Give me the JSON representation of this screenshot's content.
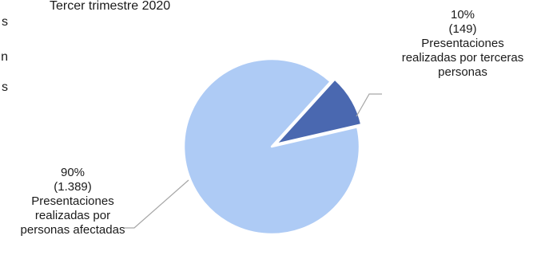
{
  "left_edge_glyphs": [
    "s",
    "n",
    "s"
  ],
  "chart_data": {
    "type": "pie",
    "title": "Tercer trimestre 2020",
    "slices": [
      {
        "percent_label": "10%",
        "count_label": "(149)",
        "value": 149,
        "description_lines": [
          "Presentaciones",
          "realizadas por terceras",
          "personas"
        ],
        "color": "#4a68b0"
      },
      {
        "percent_label": "90%",
        "count_label": "(1.389)",
        "value": 1389,
        "description_lines": [
          "Presentaciones",
          "realizadas por",
          "personas afectadas"
        ],
        "color": "#aecbf5"
      }
    ],
    "legend": "none",
    "grid": false
  }
}
